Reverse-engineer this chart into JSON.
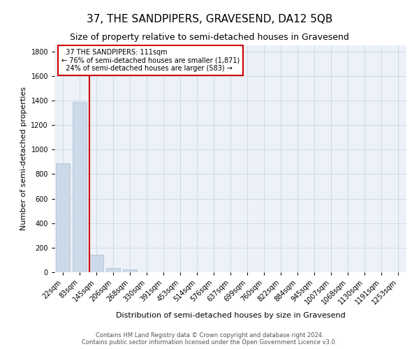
{
  "title": "37, THE SANDPIPERS, GRAVESEND, DA12 5QB",
  "subtitle": "Size of property relative to semi-detached houses in Gravesend",
  "xlabel": "Distribution of semi-detached houses by size in Gravesend",
  "ylabel": "Number of semi-detached properties",
  "footer_line1": "Contains HM Land Registry data © Crown copyright and database right 2024.",
  "footer_line2": "Contains public sector information licensed under the Open Government Licence v3.0.",
  "categories": [
    "22sqm",
    "83sqm",
    "145sqm",
    "206sqm",
    "268sqm",
    "330sqm",
    "391sqm",
    "453sqm",
    "514sqm",
    "576sqm",
    "637sqm",
    "699sqm",
    "760sqm",
    "822sqm",
    "884sqm",
    "945sqm",
    "1007sqm",
    "1068sqm",
    "1130sqm",
    "1191sqm",
    "1253sqm"
  ],
  "values": [
    890,
    1390,
    145,
    35,
    20,
    0,
    0,
    0,
    0,
    0,
    0,
    0,
    0,
    0,
    0,
    0,
    0,
    0,
    0,
    0,
    0
  ],
  "bar_color": "#ccd9e8",
  "bar_edge_color": "#aabcce",
  "vline_color": "#cc0000",
  "annotation_box_color": "#cc0000",
  "ylim": [
    0,
    1850
  ],
  "yticks": [
    0,
    200,
    400,
    600,
    800,
    1000,
    1200,
    1400,
    1600,
    1800
  ],
  "grid_color": "#d0d8e8",
  "bg_color": "#edf2f8",
  "property_label": "37 THE SANDPIPERS: 111sqm",
  "pct_smaller": 76,
  "count_smaller": 1871,
  "pct_larger": 24,
  "count_larger": 583,
  "title_fontsize": 11,
  "subtitle_fontsize": 9,
  "ylabel_fontsize": 8,
  "xlabel_fontsize": 8,
  "footer_fontsize": 6,
  "tick_fontsize": 7,
  "annot_fontsize": 7
}
